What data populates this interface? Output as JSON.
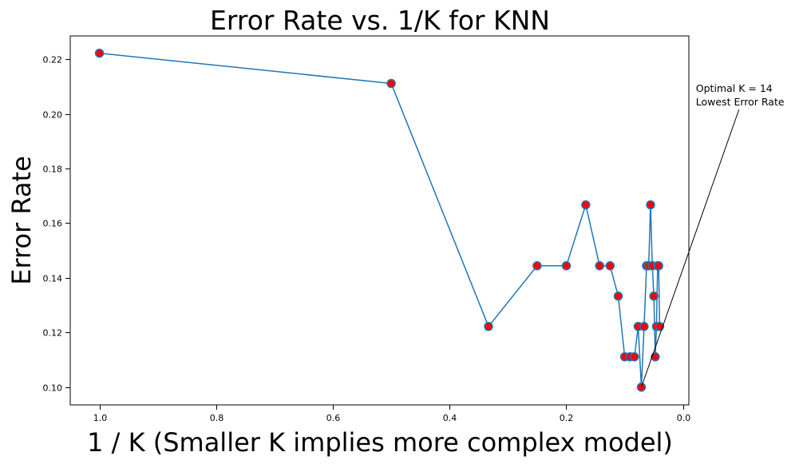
{
  "chart_data": {
    "type": "line",
    "title": "Error Rate vs. 1/K for KNN",
    "xlabel": "1 / K (Smaller K implies more complex model)",
    "ylabel": "Error Rate",
    "xlim": [
      1.05,
      -0.01
    ],
    "ylim": [
      0.0935,
      0.2285
    ],
    "x_inverted": true,
    "grid": false,
    "legend": "none",
    "x_ticks": [
      1.0,
      0.8,
      0.6,
      0.4,
      0.2,
      0.0
    ],
    "x_tick_labels": [
      "1.0",
      "0.8",
      "0.6",
      "0.4",
      "0.2",
      "0.0"
    ],
    "y_ticks": [
      0.1,
      0.12,
      0.14,
      0.16,
      0.18,
      0.2,
      0.22
    ],
    "y_tick_labels": [
      "0.10",
      "0.12",
      "0.14",
      "0.16",
      "0.18",
      "0.20",
      "0.22"
    ],
    "series": [
      {
        "line_color": "#1f77b4",
        "marker_face": "#ff0000",
        "marker_edge": "#1f77b4",
        "k": [
          1,
          2,
          3,
          4,
          5,
          6,
          7,
          8,
          9,
          10,
          11,
          12,
          13,
          14,
          15,
          16,
          17,
          18,
          19,
          20,
          21,
          22,
          23,
          24,
          25
        ],
        "x": [
          1.0,
          0.5,
          0.3333,
          0.25,
          0.2,
          0.1667,
          0.1429,
          0.125,
          0.1111,
          0.1,
          0.0909,
          0.0833,
          0.0769,
          0.0714,
          0.0667,
          0.0625,
          0.0588,
          0.0556,
          0.0526,
          0.05,
          0.0476,
          0.0455,
          0.0435,
          0.0417,
          0.04
        ],
        "y": [
          0.2222,
          0.2111,
          0.1222,
          0.1444,
          0.1444,
          0.1667,
          0.1444,
          0.1444,
          0.1333,
          0.1111,
          0.1111,
          0.1111,
          0.1222,
          0.1,
          0.1222,
          0.1444,
          0.1444,
          0.1667,
          0.1444,
          0.1333,
          0.1111,
          0.1222,
          0.1444,
          0.1444,
          0.1222
        ]
      }
    ],
    "annotation": {
      "lines": [
        "Optimal K = 14",
        "Lowest Error Rate"
      ],
      "point": {
        "x": 0.0714,
        "y": 0.1
      },
      "text_anchor": {
        "x": -0.022,
        "y": 0.2045
      }
    }
  }
}
